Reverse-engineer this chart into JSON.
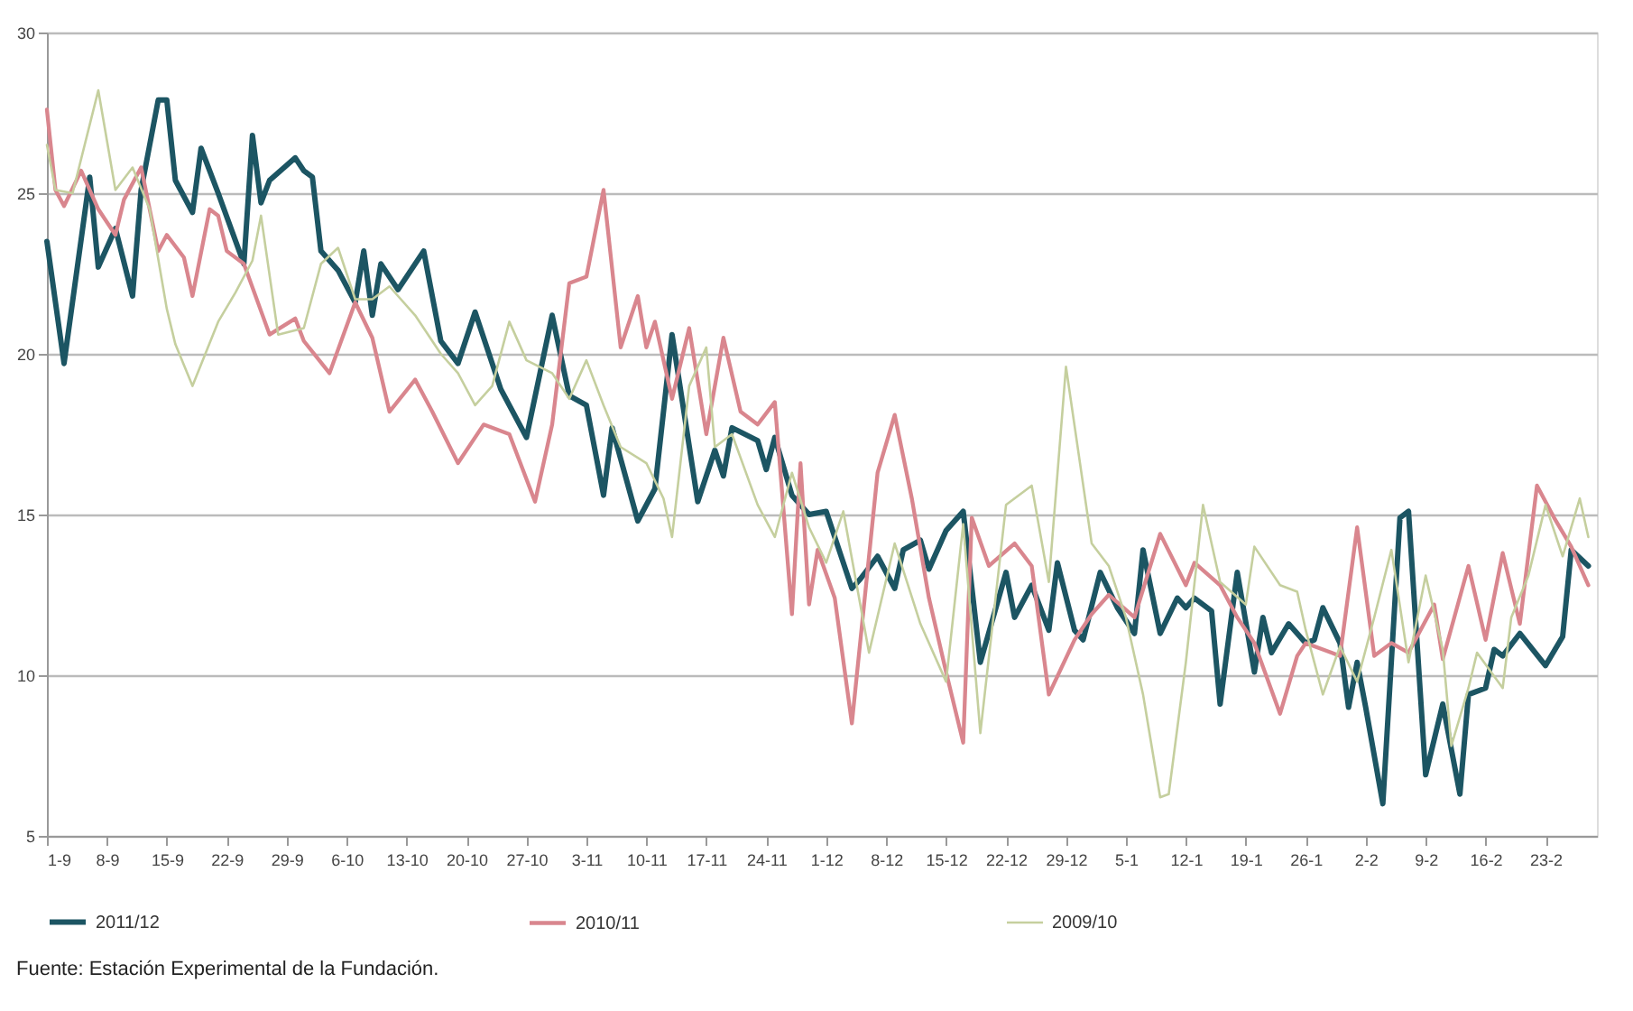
{
  "chart_data": {
    "type": "line",
    "grid": "y",
    "legend": "bottom",
    "marker": "none",
    "line_style": "solid",
    "annotations": [
      "Fuente: Estación Experimental de la Fundación."
    ],
    "ylim": [
      5,
      30
    ],
    "yticks": [
      5,
      10,
      15,
      20,
      25,
      30
    ],
    "xlim": [
      "2011-09-01",
      "2012-02-29"
    ],
    "xticks": [
      {
        "value": "2011-09-01",
        "label": "1-9"
      },
      {
        "value": "2011-09-08",
        "label": "8-9"
      },
      {
        "value": "2011-09-15",
        "label": "15-9"
      },
      {
        "value": "2011-09-22",
        "label": "22-9"
      },
      {
        "value": "2011-09-29",
        "label": "29-9"
      },
      {
        "value": "2011-10-06",
        "label": "6-10"
      },
      {
        "value": "2011-10-13",
        "label": "13-10"
      },
      {
        "value": "2011-10-20",
        "label": "20-10"
      },
      {
        "value": "2011-10-27",
        "label": "27-10"
      },
      {
        "value": "2011-11-03",
        "label": "3-11"
      },
      {
        "value": "2011-11-10",
        "label": "10-11"
      },
      {
        "value": "2011-11-17",
        "label": "17-11"
      },
      {
        "value": "2011-11-24",
        "label": "24-11"
      },
      {
        "value": "2011-12-01",
        "label": "1-12"
      },
      {
        "value": "2011-12-08",
        "label": "8-12"
      },
      {
        "value": "2011-12-15",
        "label": "15-12"
      },
      {
        "value": "2011-12-22",
        "label": "22-12"
      },
      {
        "value": "2011-12-29",
        "label": "29-12"
      },
      {
        "value": "2012-01-05",
        "label": "5-1"
      },
      {
        "value": "2012-01-12",
        "label": "12-1"
      },
      {
        "value": "2012-01-19",
        "label": "19-1"
      },
      {
        "value": "2012-01-26",
        "label": "26-1"
      },
      {
        "value": "2012-02-02",
        "label": "2-2"
      },
      {
        "value": "2012-02-09",
        "label": "9-2"
      },
      {
        "value": "2012-02-16",
        "label": "16-2"
      },
      {
        "value": "2012-02-23",
        "label": "23-2"
      }
    ],
    "series": [
      {
        "name": "2011/12",
        "color": "#1c5563",
        "x": [
          "2011-09-01",
          "2011-09-03",
          "2011-09-06",
          "2011-09-07",
          "2011-09-09",
          "2011-09-11",
          "2011-09-12",
          "2011-09-14",
          "2011-09-15",
          "2011-09-16",
          "2011-09-18",
          "2011-09-19",
          "2011-09-21",
          "2011-09-24",
          "2011-09-25",
          "2011-09-26",
          "2011-09-27",
          "2011-09-30",
          "2011-10-01",
          "2011-10-02",
          "2011-10-03",
          "2011-10-05",
          "2011-10-07",
          "2011-10-08",
          "2011-10-09",
          "2011-10-10",
          "2011-10-12",
          "2011-10-15",
          "2011-10-17",
          "2011-10-19",
          "2011-10-21",
          "2011-10-24",
          "2011-10-27",
          "2011-10-30",
          "2011-11-01",
          "2011-11-03",
          "2011-11-05",
          "2011-11-06",
          "2011-11-09",
          "2011-11-11",
          "2011-11-13",
          "2011-11-16",
          "2011-11-18",
          "2011-11-19",
          "2011-11-20",
          "2011-11-23",
          "2011-11-24",
          "2011-11-25",
          "2011-11-27",
          "2011-11-29",
          "2011-12-01",
          "2011-12-04",
          "2011-12-05",
          "2011-12-07",
          "2011-12-09",
          "2011-12-10",
          "2011-12-12",
          "2011-12-13",
          "2011-12-15",
          "2011-12-17",
          "2011-12-19",
          "2011-12-22",
          "2011-12-23",
          "2011-12-25",
          "2011-12-27",
          "2011-12-28",
          "2011-12-30",
          "2011-12-31",
          "2012-01-02",
          "2012-01-04",
          "2012-01-06",
          "2012-01-07",
          "2012-01-09",
          "2012-01-11",
          "2012-01-12",
          "2012-01-13",
          "2012-01-15",
          "2012-01-16",
          "2012-01-18",
          "2012-01-20",
          "2012-01-21",
          "2012-01-22",
          "2012-01-24",
          "2012-01-26",
          "2012-01-27",
          "2012-01-28",
          "2012-01-30",
          "2012-01-31",
          "2012-02-01",
          "2012-02-02",
          "2012-02-04",
          "2012-02-06",
          "2012-02-07",
          "2012-02-09",
          "2012-02-11",
          "2012-02-13",
          "2012-02-14",
          "2012-02-16",
          "2012-02-17",
          "2012-02-18",
          "2012-02-20",
          "2012-02-23",
          "2012-02-25",
          "2012-02-26",
          "2012-02-28"
        ],
        "values": [
          23.5,
          19.7,
          25.5,
          22.7,
          23.9,
          21.8,
          25.1,
          27.9,
          27.9,
          25.4,
          24.4,
          26.4,
          25.0,
          22.8,
          26.8,
          24.7,
          25.4,
          26.1,
          25.7,
          25.5,
          23.2,
          22.6,
          21.6,
          23.2,
          21.2,
          22.8,
          22.0,
          23.2,
          20.4,
          19.7,
          21.3,
          18.9,
          17.4,
          21.2,
          18.7,
          18.4,
          15.6,
          17.7,
          14.8,
          15.8,
          20.6,
          15.4,
          17.0,
          16.2,
          17.7,
          17.3,
          16.4,
          17.4,
          15.6,
          15.0,
          15.1,
          12.7,
          13.0,
          13.7,
          12.7,
          13.9,
          14.2,
          13.3,
          14.5,
          15.1,
          10.4,
          13.2,
          11.8,
          12.8,
          11.4,
          13.5,
          11.4,
          11.1,
          13.2,
          12.1,
          11.3,
          13.9,
          11.3,
          12.4,
          12.1,
          12.4,
          12.0,
          9.1,
          13.2,
          10.1,
          11.8,
          10.7,
          11.6,
          11.0,
          11.1,
          12.1,
          11.0,
          9.0,
          10.4,
          9.0,
          6.0,
          14.9,
          15.1,
          6.9,
          9.1,
          6.3,
          9.4,
          9.6,
          10.8,
          10.6,
          11.3,
          10.3,
          11.2,
          13.9,
          13.4
        ]
      },
      {
        "name": "2010/11",
        "color": "#d9868e",
        "x": [
          "2011-09-01",
          "2011-09-02",
          "2011-09-03",
          "2011-09-05",
          "2011-09-07",
          "2011-09-09",
          "2011-09-10",
          "2011-09-12",
          "2011-09-14",
          "2011-09-15",
          "2011-09-17",
          "2011-09-18",
          "2011-09-20",
          "2011-09-21",
          "2011-09-22",
          "2011-09-24",
          "2011-09-27",
          "2011-09-30",
          "2011-10-01",
          "2011-10-04",
          "2011-10-07",
          "2011-10-09",
          "2011-10-11",
          "2011-10-14",
          "2011-10-16",
          "2011-10-19",
          "2011-10-22",
          "2011-10-25",
          "2011-10-28",
          "2011-10-30",
          "2011-11-01",
          "2011-11-03",
          "2011-11-05",
          "2011-11-07",
          "2011-11-09",
          "2011-11-10",
          "2011-11-11",
          "2011-11-13",
          "2011-11-15",
          "2011-11-17",
          "2011-11-19",
          "2011-11-21",
          "2011-11-23",
          "2011-11-25",
          "2011-11-27",
          "2011-11-28",
          "2011-11-29",
          "2011-11-30",
          "2011-12-02",
          "2011-12-04",
          "2011-12-07",
          "2011-12-09",
          "2011-12-11",
          "2011-12-13",
          "2011-12-15",
          "2011-12-17",
          "2011-12-18",
          "2011-12-20",
          "2011-12-23",
          "2011-12-25",
          "2011-12-27",
          "2011-12-30",
          "2012-01-01",
          "2012-01-03",
          "2012-01-06",
          "2012-01-09",
          "2012-01-12",
          "2012-01-13",
          "2012-01-16",
          "2012-01-18",
          "2012-01-20",
          "2012-01-23",
          "2012-01-25",
          "2012-01-26",
          "2012-01-29",
          "2012-01-30",
          "2012-02-01",
          "2012-02-03",
          "2012-02-05",
          "2012-02-07",
          "2012-02-10",
          "2012-02-11",
          "2012-02-14",
          "2012-02-16",
          "2012-02-18",
          "2012-02-20",
          "2012-02-22",
          "2012-02-24",
          "2012-02-26",
          "2012-02-28"
        ],
        "values": [
          27.6,
          25.1,
          24.6,
          25.7,
          24.5,
          23.7,
          24.8,
          25.8,
          23.2,
          23.7,
          23.0,
          21.8,
          24.5,
          24.3,
          23.2,
          22.8,
          20.6,
          21.1,
          20.4,
          19.4,
          21.6,
          20.5,
          18.2,
          19.2,
          18.2,
          16.6,
          17.8,
          17.5,
          15.4,
          17.8,
          22.2,
          22.4,
          25.1,
          20.2,
          21.8,
          20.2,
          21.0,
          18.6,
          20.8,
          17.5,
          20.5,
          18.2,
          17.8,
          18.5,
          11.9,
          16.6,
          12.2,
          13.9,
          12.4,
          8.5,
          16.3,
          18.1,
          15.5,
          12.4,
          10.1,
          7.9,
          14.9,
          13.4,
          14.1,
          13.4,
          9.4,
          11.1,
          11.9,
          12.5,
          11.8,
          14.4,
          12.8,
          13.5,
          12.8,
          11.8,
          11.0,
          8.8,
          10.6,
          11.0,
          10.7,
          10.6,
          14.6,
          10.6,
          11.0,
          10.7,
          12.2,
          10.5,
          13.4,
          11.1,
          13.8,
          11.6,
          15.9,
          14.9,
          14.0,
          12.8
        ]
      },
      {
        "name": "2009/10",
        "color": "#c5cf9e",
        "x": [
          "2011-09-01",
          "2011-09-02",
          "2011-09-04",
          "2011-09-07",
          "2011-09-09",
          "2011-09-11",
          "2011-09-13",
          "2011-09-15",
          "2011-09-16",
          "2011-09-18",
          "2011-09-21",
          "2011-09-23",
          "2011-09-25",
          "2011-09-26",
          "2011-09-28",
          "2011-10-01",
          "2011-10-03",
          "2011-10-05",
          "2011-10-07",
          "2011-10-09",
          "2011-10-11",
          "2011-10-14",
          "2011-10-17",
          "2011-10-19",
          "2011-10-21",
          "2011-10-23",
          "2011-10-25",
          "2011-10-27",
          "2011-10-30",
          "2011-11-01",
          "2011-11-03",
          "2011-11-05",
          "2011-11-07",
          "2011-11-10",
          "2011-11-12",
          "2011-11-13",
          "2011-11-15",
          "2011-11-17",
          "2011-11-18",
          "2011-11-20",
          "2011-11-23",
          "2011-11-25",
          "2011-11-27",
          "2011-11-29",
          "2011-12-01",
          "2011-12-03",
          "2011-12-06",
          "2011-12-09",
          "2011-12-12",
          "2011-12-15",
          "2011-12-17",
          "2011-12-19",
          "2011-12-22",
          "2011-12-25",
          "2011-12-27",
          "2011-12-29",
          "2012-01-01",
          "2012-01-03",
          "2012-01-05",
          "2012-01-07",
          "2012-01-09",
          "2012-01-10",
          "2012-01-12",
          "2012-01-14",
          "2012-01-16",
          "2012-01-19",
          "2012-01-20",
          "2012-01-23",
          "2012-01-25",
          "2012-01-26",
          "2012-01-28",
          "2012-01-30",
          "2012-02-01",
          "2012-02-03",
          "2012-02-05",
          "2012-02-07",
          "2012-02-09",
          "2012-02-11",
          "2012-02-12",
          "2012-02-14",
          "2012-02-15",
          "2012-02-18",
          "2012-02-19",
          "2012-02-21",
          "2012-02-23",
          "2012-02-25",
          "2012-02-27",
          "2012-02-28"
        ],
        "values": [
          26.5,
          25.1,
          25.0,
          28.2,
          25.1,
          25.8,
          24.5,
          21.4,
          20.3,
          19.0,
          21.0,
          21.9,
          22.9,
          24.3,
          20.6,
          20.8,
          22.8,
          23.3,
          21.7,
          21.7,
          22.1,
          21.2,
          20.0,
          19.4,
          18.4,
          19.0,
          21.0,
          19.8,
          19.4,
          18.6,
          19.8,
          18.4,
          17.1,
          16.6,
          15.5,
          14.3,
          19.0,
          20.2,
          17.1,
          17.5,
          15.3,
          14.3,
          16.3,
          14.6,
          13.5,
          15.1,
          10.7,
          14.1,
          11.6,
          9.8,
          14.7,
          8.2,
          15.3,
          15.9,
          12.9,
          19.6,
          14.1,
          13.4,
          11.8,
          9.4,
          6.2,
          6.3,
          10.4,
          15.3,
          12.9,
          12.2,
          14.0,
          12.8,
          12.6,
          11.4,
          9.4,
          10.9,
          9.8,
          11.8,
          13.9,
          10.4,
          13.1,
          10.8,
          7.8,
          9.6,
          10.7,
          9.6,
          11.8,
          13.1,
          15.3,
          13.7,
          15.5,
          14.3
        ]
      }
    ]
  }
}
